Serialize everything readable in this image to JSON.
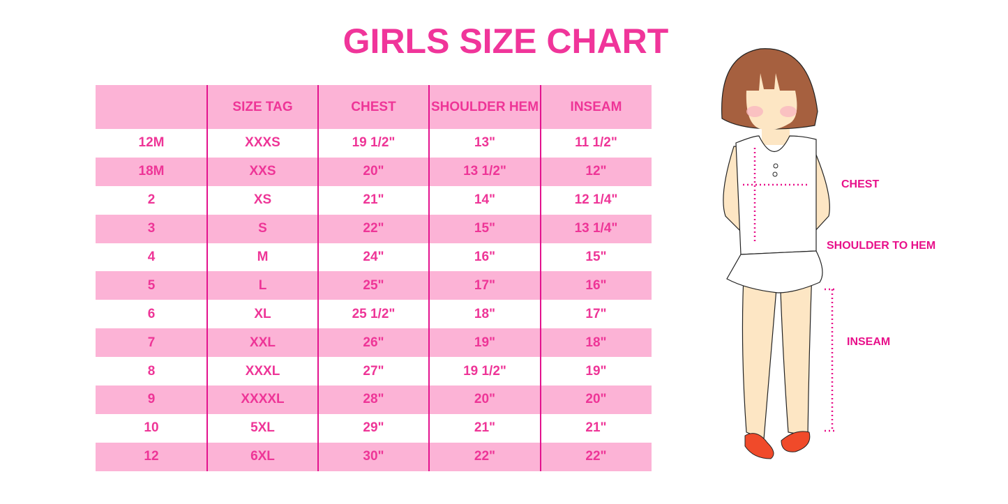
{
  "title": "GIRLS SIZE CHART",
  "table": {
    "headers": [
      "",
      "SIZE TAG",
      "CHEST",
      "SHOULDER HEM",
      "INSEAM"
    ],
    "rows": [
      [
        "12M",
        "XXXS",
        "19 1/2\"",
        "13\"",
        "11 1/2\""
      ],
      [
        "18M",
        "XXS",
        "20\"",
        "13 1/2\"",
        "12\""
      ],
      [
        "2",
        "XS",
        "21\"",
        "14\"",
        "12 1/4\""
      ],
      [
        "3",
        "S",
        "22\"",
        "15\"",
        "13 1/4\""
      ],
      [
        "4",
        "M",
        "24\"",
        "16\"",
        "15\""
      ],
      [
        "5",
        "L",
        "25\"",
        "17\"",
        "16\""
      ],
      [
        "6",
        "XL",
        "25 1/2\"",
        "18\"",
        "17\""
      ],
      [
        "7",
        "XXL",
        "26\"",
        "19\"",
        "18\""
      ],
      [
        "8",
        "XXXL",
        "27\"",
        "19 1/2\"",
        "19\""
      ],
      [
        "9",
        "XXXXL",
        "28\"",
        "20\"",
        "20\""
      ],
      [
        "10",
        "5XL",
        "29\"",
        "21\"",
        "21\""
      ],
      [
        "12",
        "6XL",
        "30\"",
        "22\"",
        "22\""
      ]
    ]
  },
  "illustration": {
    "labels": {
      "chest": "CHEST",
      "shoulder": "SHOULDER TO HEM",
      "inseam": "INSEAM"
    }
  },
  "colors": {
    "accent": "#f0359a",
    "band": "#fcb3d6",
    "divider": "#e3138e"
  }
}
